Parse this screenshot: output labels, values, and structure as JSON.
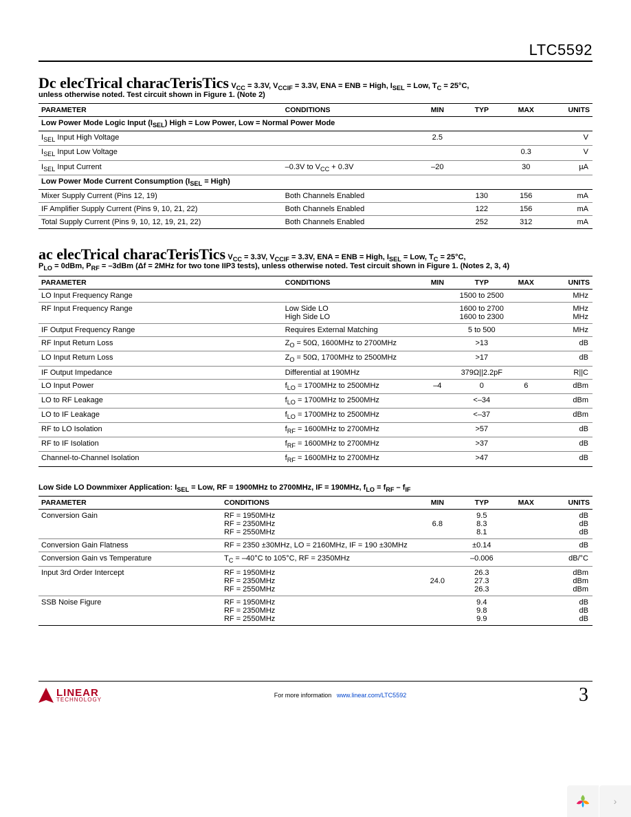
{
  "partNumber": "LTC5592",
  "dc": {
    "title": "Dc elecTrical characTerisTics",
    "cond": "V<sub>CC</sub> = 3.3V, V<sub>CCIF</sub> = 3.3V, ENA = ENB = High, I<sub>SEL</sub> = Low, T<sub>C</sub> = 25°C,",
    "note": "unless otherwise noted. Test circuit shown in Figure 1. (Note 2)",
    "headers": [
      "PARAMETER",
      "CONDITIONS",
      "MIN",
      "TYP",
      "MAX",
      "UNITS"
    ],
    "rows": [
      {
        "type": "section",
        "text": "Low Power Mode Logic Input (I<sub>SEL</sub>) High = Low Power, Low = Normal Power Mode"
      },
      {
        "param": "I<sub>SEL</sub> Input High Voltage",
        "cond": "",
        "min": "2.5",
        "typ": "",
        "max": "",
        "units": "V"
      },
      {
        "param": "I<sub>SEL</sub> Input Low Voltage",
        "cond": "",
        "min": "",
        "typ": "",
        "max": "0.3",
        "units": "V"
      },
      {
        "param": "I<sub>SEL</sub> Input Current",
        "cond": "–0.3V to V<sub>CC</sub> + 0.3V",
        "min": "–20",
        "typ": "",
        "max": "30",
        "units": "µA"
      },
      {
        "type": "section",
        "text": "Low Power Mode Current Consumption (I<sub>SEL</sub> = High)"
      },
      {
        "param": "Mixer Supply Current (Pins 12, 19)",
        "cond": "Both Channels Enabled",
        "min": "",
        "typ": "130",
        "max": "156",
        "units": "mA"
      },
      {
        "param": "IF Amplifier Supply Current (Pins 9, 10, 21, 22)",
        "cond": "Both Channels Enabled",
        "min": "",
        "typ": "122",
        "max": "156",
        "units": "mA"
      },
      {
        "param": "Total Supply Current (Pins 9, 10, 12, 19, 21, 22)",
        "cond": "Both Channels Enabled",
        "min": "",
        "typ": "252",
        "max": "312",
        "units": "mA",
        "last": true
      }
    ]
  },
  "ac": {
    "title": "ac elecTrical characTerisTics",
    "cond": "V<sub>CC</sub> = 3.3V, V<sub>CCIF</sub> = 3.3V, ENA = ENB = High, I<sub>SEL</sub> = Low, T<sub>C</sub> = 25°C,",
    "note": "P<sub>LO</sub> = 0dBm, P<sub>RF</sub> = –3dBm (Δf = 2MHz for two tone IIP3 tests), unless otherwise noted. Test circuit shown in Figure 1. (Notes 2, 3, 4)",
    "headers": [
      "PARAMETER",
      "CONDITIONS",
      "MIN",
      "TYP",
      "MAX",
      "UNITS"
    ],
    "rows": [
      {
        "param": "LO Input Frequency Range",
        "cond": "",
        "min": "",
        "typ": "1500 to 2500",
        "max": "",
        "units": "MHz",
        "span": true
      },
      {
        "param": "RF Input Frequency Range",
        "cond": "Low Side LO<br>High Side LO",
        "min": "",
        "typ": "1600 to 2700<br>1600 to 2300",
        "max": "",
        "units": "MHz<br>MHz",
        "span": true
      },
      {
        "param": "IF Output Frequency Range",
        "cond": "Requires External Matching",
        "min": "",
        "typ": "5 to 500",
        "max": "",
        "units": "MHz",
        "span": true
      },
      {
        "param": "RF Input Return Loss",
        "cond": "Z<sub>O</sub> = 50Ω, 1600MHz to 2700MHz",
        "min": "",
        "typ": ">13",
        "max": "",
        "units": "dB"
      },
      {
        "param": "LO Input Return Loss",
        "cond": "Z<sub>O</sub> = 50Ω, 1700MHz to 2500MHz",
        "min": "",
        "typ": ">17",
        "max": "",
        "units": "dB"
      },
      {
        "param": "IF Output Impedance",
        "cond": "Differential at 190MHz",
        "min": "",
        "typ": "379Ω||2.2pF",
        "max": "",
        "units": "R||C",
        "span": true
      },
      {
        "param": "LO Input Power",
        "cond": "f<sub>LO</sub> = 1700MHz to 2500MHz",
        "min": "–4",
        "typ": "0",
        "max": "6",
        "units": "dBm"
      },
      {
        "param": "LO to RF Leakage",
        "cond": "f<sub>LO</sub> = 1700MHz to 2500MHz",
        "min": "",
        "typ": "<–34",
        "max": "",
        "units": "dBm"
      },
      {
        "param": "LO to IF Leakage",
        "cond": "f<sub>LO</sub> = 1700MHz to 2500MHz",
        "min": "",
        "typ": "<–37",
        "max": "",
        "units": "dBm"
      },
      {
        "param": "RF to LO Isolation",
        "cond": "f<sub>RF</sub> = 1600MHz to 2700MHz",
        "min": "",
        "typ": ">57",
        "max": "",
        "units": "dB"
      },
      {
        "param": "RF to IF Isolation",
        "cond": "f<sub>RF</sub> = 1600MHz to 2700MHz",
        "min": "",
        "typ": ">37",
        "max": "",
        "units": "dB"
      },
      {
        "param": "Channel-to-Channel Isolation",
        "cond": "f<sub>RF</sub> = 1600MHz to 2700MHz",
        "min": "",
        "typ": ">47",
        "max": "",
        "units": "dB",
        "last": true
      }
    ]
  },
  "lowSide": {
    "header": "Low Side LO Downmixer Application: I<sub>SEL</sub> = Low, RF = 1900MHz to 2700MHz, IF = 190MHz, f<sub>LO</sub> = f<sub>RF</sub> – f<sub>IF</sub>",
    "headers": [
      "PARAMETER",
      "CONDITIONS",
      "MIN",
      "TYP",
      "MAX",
      "UNITS"
    ],
    "colWidths": [
      "33%",
      "35%",
      "8%",
      "8%",
      "8%",
      "8%"
    ],
    "rows": [
      {
        "param": "Conversion Gain",
        "cond": "RF = 1950MHz<br>RF = 2350MHz<br>RF = 2550MHz",
        "min": "<br>6.8<br>",
        "typ": "9.5<br>8.3<br>8.1",
        "max": "",
        "units": "dB<br>dB<br>dB"
      },
      {
        "param": "Conversion Gain Flatness",
        "cond": "RF = 2350 ±30MHz, LO = 2160MHz, IF = 190 ±30MHz",
        "min": "",
        "typ": "±0.14",
        "max": "",
        "units": "dB"
      },
      {
        "param": "Conversion Gain vs Temperature",
        "cond": "T<sub>C</sub> = –40°C to 105°C, RF = 2350MHz",
        "min": "",
        "typ": "–0.006",
        "max": "",
        "units": "dB/°C"
      },
      {
        "param": "Input 3rd Order Intercept",
        "cond": "RF = 1950MHz<br>RF = 2350MHz<br>RF = 2550MHz",
        "min": "<br>24.0<br>",
        "typ": "26.3<br>27.3<br>26.3",
        "max": "",
        "units": "dBm<br>dBm<br>dBm"
      },
      {
        "param": "SSB Noise Figure",
        "cond": "RF = 1950MHz<br>RF = 2350MHz<br>RF = 2550MHz",
        "min": "",
        "typ": "9.4<br>9.8<br>9.9",
        "max": "",
        "units": "dB<br>dB<br>dB",
        "last": true
      }
    ]
  },
  "footer": {
    "logoMain": "LINEAR",
    "logoSub": "TECHNOLOGY",
    "info": "For more information",
    "link": "www.linear.com/LTC5592",
    "pageNum": "3"
  }
}
